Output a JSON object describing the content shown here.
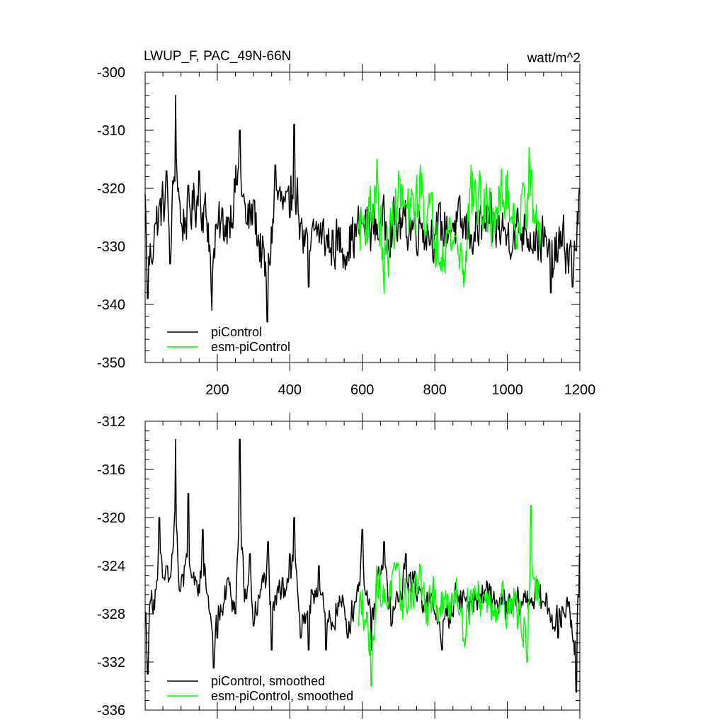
{
  "chart_data": [
    {
      "type": "line",
      "title": "LWUP_F, PAC_49N-66N",
      "units": "watt/m^2",
      "xlim": [
        1,
        1200
      ],
      "ylim": [
        -350,
        -300
      ],
      "x_ticks": [
        200,
        400,
        600,
        800,
        1000,
        1200
      ],
      "x_ticks_shown": true,
      "y_ticks": [
        -300,
        -310,
        -320,
        -330,
        -340,
        -350
      ],
      "legend": {
        "placement": "bottom-left",
        "entries": [
          "piControl",
          "esm-piControl"
        ]
      },
      "series": [
        {
          "name": "piControl",
          "color": "#000000",
          "x_start": 1,
          "x_end": 1200,
          "keypoints": [
            [
              1,
              -321
            ],
            [
              8,
              -339
            ],
            [
              30,
              -326
            ],
            [
              60,
              -317
            ],
            [
              70,
              -333
            ],
            [
              85,
              -304
            ],
            [
              100,
              -326
            ],
            [
              150,
              -317
            ],
            [
              175,
              -326
            ],
            [
              185,
              -341
            ],
            [
              200,
              -327
            ],
            [
              230,
              -325
            ],
            [
              262,
              -310
            ],
            [
              280,
              -326
            ],
            [
              300,
              -322
            ],
            [
              338,
              -343
            ],
            [
              360,
              -316
            ],
            [
              400,
              -325
            ],
            [
              412,
              -309
            ],
            [
              430,
              -326
            ],
            [
              452,
              -337
            ],
            [
              470,
              -327
            ],
            [
              510,
              -331
            ],
            [
              560,
              -331
            ],
            [
              600,
              -326
            ],
            [
              650,
              -326
            ],
            [
              700,
              -326
            ],
            [
              760,
              -326
            ],
            [
              800,
              -328
            ],
            [
              850,
              -326
            ],
            [
              900,
              -328
            ],
            [
              950,
              -326
            ],
            [
              1000,
              -328
            ],
            [
              1050,
              -327
            ],
            [
              1100,
              -330
            ],
            [
              1120,
              -338
            ],
            [
              1150,
              -330
            ],
            [
              1180,
              -337
            ],
            [
              1200,
              -320
            ]
          ],
          "mean": -327,
          "noise_amplitude": 4.5
        },
        {
          "name": "esm-piControl",
          "color": "#00ff00",
          "x_start": 590,
          "x_end": 1090,
          "keypoints": [
            [
              590,
              -327
            ],
            [
              620,
              -323
            ],
            [
              640,
              -315
            ],
            [
              660,
              -338
            ],
            [
              700,
              -317
            ],
            [
              730,
              -325
            ],
            [
              760,
              -316
            ],
            [
              800,
              -329
            ],
            [
              850,
              -329
            ],
            [
              880,
              -337
            ],
            [
              900,
              -316
            ],
            [
              950,
              -324
            ],
            [
              1000,
              -317
            ],
            [
              1030,
              -326
            ],
            [
              1060,
              -313
            ],
            [
              1075,
              -326
            ],
            [
              1090,
              -326
            ]
          ],
          "mean": -327,
          "noise_amplitude": 5.5
        }
      ]
    },
    {
      "type": "line",
      "title": "",
      "xlim": [
        1,
        1200
      ],
      "ylim": [
        -336,
        -312
      ],
      "x_ticks": [
        200,
        400,
        600,
        800,
        1000,
        1200
      ],
      "x_ticks_shown": false,
      "y_ticks": [
        -312,
        -316,
        -320,
        -324,
        -328,
        -332,
        -336
      ],
      "legend": {
        "placement": "bottom-left",
        "entries": [
          "piControl, smoothed",
          "esm-piControl, smoothed"
        ]
      },
      "series": [
        {
          "name": "piControl, smoothed",
          "color": "#000000",
          "x_start": 1,
          "x_end": 1200,
          "keypoints": [
            [
              1,
              -328
            ],
            [
              8,
              -333
            ],
            [
              15,
              -327
            ],
            [
              30,
              -326
            ],
            [
              40,
              -320
            ],
            [
              50,
              -325
            ],
            [
              60,
              -324
            ],
            [
              70,
              -325
            ],
            [
              85,
              -313.5
            ],
            [
              95,
              -326
            ],
            [
              110,
              -324
            ],
            [
              120,
              -318
            ],
            [
              130,
              -325
            ],
            [
              145,
              -326
            ],
            [
              160,
              -321
            ],
            [
              180,
              -328
            ],
            [
              190,
              -332.5
            ],
            [
              200,
              -330
            ],
            [
              230,
              -325
            ],
            [
              250,
              -328
            ],
            [
              262,
              -313.5
            ],
            [
              275,
              -327
            ],
            [
              290,
              -323
            ],
            [
              300,
              -329
            ],
            [
              320,
              -326
            ],
            [
              340,
              -322
            ],
            [
              350,
              -331
            ],
            [
              365,
              -326
            ],
            [
              380,
              -325
            ],
            [
              400,
              -323
            ],
            [
              412,
              -320
            ],
            [
              430,
              -330
            ],
            [
              452,
              -331
            ],
            [
              460,
              -326
            ],
            [
              480,
              -324
            ],
            [
              500,
              -331
            ],
            [
              520,
              -329
            ],
            [
              540,
              -327
            ],
            [
              560,
              -330
            ],
            [
              580,
              -327
            ],
            [
              600,
              -321
            ],
            [
              625,
              -331
            ],
            [
              640,
              -325
            ],
            [
              660,
              -322
            ],
            [
              680,
              -329
            ],
            [
              700,
              -327
            ],
            [
              720,
              -323
            ],
            [
              760,
              -326
            ],
            [
              800,
              -328
            ],
            [
              820,
              -331
            ],
            [
              860,
              -326
            ],
            [
              900,
              -327
            ],
            [
              940,
              -326
            ],
            [
              1000,
              -328
            ],
            [
              1040,
              -327
            ],
            [
              1080,
              -326
            ],
            [
              1100,
              -327
            ],
            [
              1140,
              -330
            ],
            [
              1170,
              -327
            ],
            [
              1190,
              -334.5
            ],
            [
              1200,
              -323
            ]
          ],
          "mean": -327,
          "noise_amplitude": 1.3
        },
        {
          "name": "esm-piControl, smoothed",
          "color": "#00ff00",
          "x_start": 590,
          "x_end": 1090,
          "keypoints": [
            [
              590,
              -329
            ],
            [
              600,
              -326
            ],
            [
              625,
              -334
            ],
            [
              640,
              -324
            ],
            [
              660,
              -327
            ],
            [
              690,
              -324
            ],
            [
              710,
              -327
            ],
            [
              730,
              -326
            ],
            [
              760,
              -324
            ],
            [
              780,
              -329
            ],
            [
              800,
              -326
            ],
            [
              820,
              -328
            ],
            [
              840,
              -327
            ],
            [
              860,
              -325
            ],
            [
              880,
              -330
            ],
            [
              900,
              -326
            ],
            [
              940,
              -327
            ],
            [
              980,
              -327
            ],
            [
              1000,
              -327
            ],
            [
              1020,
              -327
            ],
            [
              1040,
              -330
            ],
            [
              1055,
              -332
            ],
            [
              1065,
              -319
            ],
            [
              1075,
              -325
            ],
            [
              1090,
              -327
            ]
          ],
          "mean": -327,
          "noise_amplitude": 1.8
        }
      ]
    }
  ]
}
